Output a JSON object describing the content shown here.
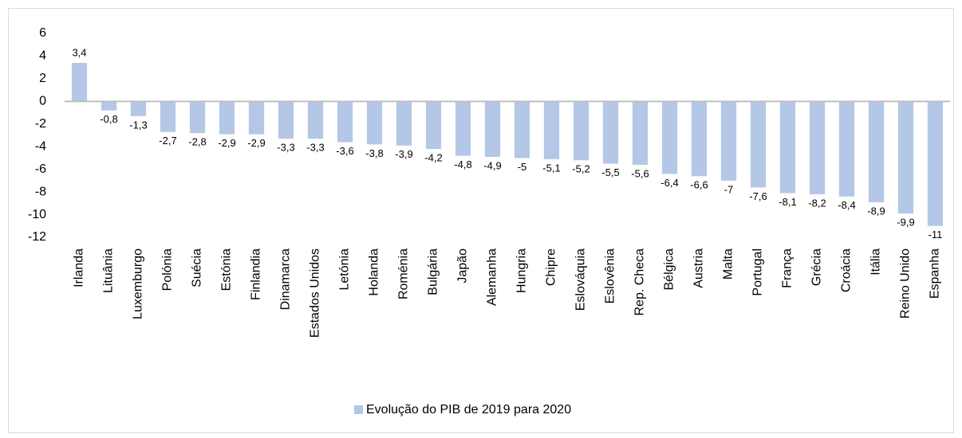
{
  "chart_data": {
    "type": "bar",
    "categories": [
      "Irlanda",
      "Lituânia",
      "Luxemburgo",
      "Polónia",
      "Suécia",
      "Estónia",
      "Finlandia",
      "Dinamarca",
      "Estados Unidos",
      "Letónia",
      "Holanda",
      "Roménia",
      "Bulgária",
      "Japão",
      "Alemanha",
      "Hungria",
      "Chipre",
      "Eslováquia",
      "Eslovênia",
      "Rep. Checa",
      "Bélgica",
      "Austria",
      "Malta",
      "Portugal",
      "França",
      "Grécia",
      "Croácia",
      "Itália",
      "Reino Unido",
      "Espanha"
    ],
    "series": [
      {
        "name": "Evolução do PIB de 2019 para 2020",
        "color": "#b4c7e7",
        "values": [
          3.4,
          -0.8,
          -1.3,
          -2.7,
          -2.8,
          -2.9,
          -2.9,
          -3.3,
          -3.3,
          -3.6,
          -3.8,
          -3.9,
          -4.2,
          -4.8,
          -4.9,
          -5,
          -5.1,
          -5.2,
          -5.5,
          -5.6,
          -6.4,
          -6.6,
          -7,
          -7.6,
          -8.1,
          -8.2,
          -8.4,
          -8.9,
          -9.9,
          -11
        ],
        "value_labels": [
          "3,4",
          "-0,8",
          "-1,3",
          "-2,7",
          "-2,8",
          "-2,9",
          "-2,9",
          "-3,3",
          "-3,3",
          "-3,6",
          "-3,8",
          "-3,9",
          "-4,2",
          "-4,8",
          "-4,9",
          "-5",
          "-5,1",
          "-5,2",
          "-5,5",
          "-5,6",
          "-6,4",
          "-6,6",
          "-7",
          "-7,6",
          "-8,1",
          "-8,2",
          "-8,4",
          "-8,9",
          "-9,9",
          "-11"
        ]
      }
    ],
    "ylim": [
      -12,
      6
    ],
    "yticks": [
      6,
      4,
      2,
      0,
      -2,
      -4,
      -6,
      -8,
      -10,
      -12
    ],
    "legend": "bottom"
  }
}
